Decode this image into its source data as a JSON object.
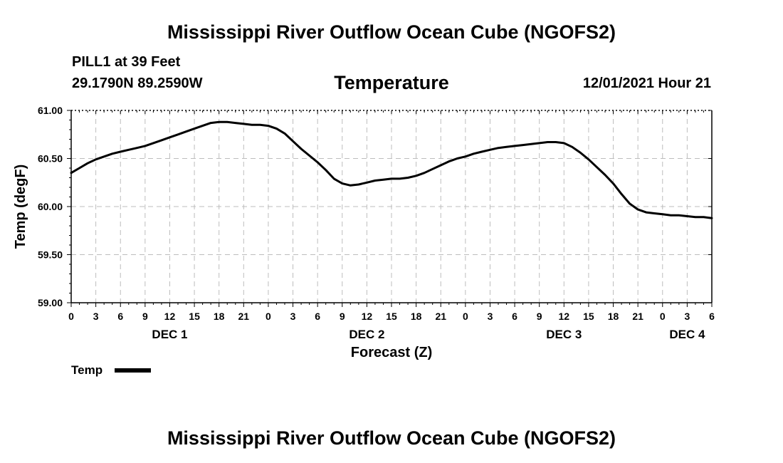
{
  "header": {
    "title": "Mississippi River Outflow Ocean Cube (NGOFS2)",
    "station": "PILL1 at 39 Feet",
    "coords": "29.1790N  89.2590W",
    "datetime": "12/01/2021 Hour 21"
  },
  "footer": {
    "title": "Mississippi River Outflow Ocean Cube (NGOFS2)"
  },
  "chart_data": {
    "type": "line",
    "title": "Temperature",
    "xlabel": "Forecast (Z)",
    "ylabel": "Temp (degF)",
    "ylim": [
      59.0,
      61.0
    ],
    "xlim": [
      0,
      78
    ],
    "grid": true,
    "y_ticks": [
      "59.00",
      "59.50",
      "60.00",
      "60.50",
      "61.00"
    ],
    "x_tick_labels": [
      "0",
      "3",
      "6",
      "9",
      "12",
      "15",
      "18",
      "21",
      "0",
      "3",
      "6",
      "9",
      "12",
      "15",
      "18",
      "21",
      "0",
      "3",
      "6",
      "9",
      "12",
      "15",
      "18",
      "21",
      "0",
      "3",
      "6"
    ],
    "day_labels": [
      {
        "hour": 12,
        "label": "DEC 1"
      },
      {
        "hour": 36,
        "label": "DEC 2"
      },
      {
        "hour": 60,
        "label": "DEC 3"
      },
      {
        "hour": 75,
        "label": "DEC 4"
      }
    ],
    "legend": "bottom-left",
    "series": [
      {
        "name": "Temp",
        "color": "#000000",
        "x": [
          0,
          1,
          2,
          3,
          4,
          5,
          6,
          7,
          8,
          9,
          10,
          11,
          12,
          13,
          14,
          15,
          16,
          17,
          18,
          19,
          20,
          21,
          22,
          23,
          24,
          25,
          26,
          27,
          28,
          29,
          30,
          31,
          32,
          33,
          34,
          35,
          36,
          37,
          38,
          39,
          40,
          41,
          42,
          43,
          44,
          45,
          46,
          47,
          48,
          49,
          50,
          51,
          52,
          53,
          54,
          55,
          56,
          57,
          58,
          59,
          60,
          61,
          62,
          63,
          64,
          65,
          66,
          67,
          68,
          69,
          70,
          71,
          72,
          73,
          74,
          75,
          76,
          77,
          78
        ],
        "y": [
          60.35,
          60.4,
          60.45,
          60.49,
          60.52,
          60.55,
          60.57,
          60.59,
          60.61,
          60.63,
          60.66,
          60.69,
          60.72,
          60.75,
          60.78,
          60.81,
          60.84,
          60.87,
          60.88,
          60.88,
          60.87,
          60.86,
          60.85,
          60.85,
          60.84,
          60.81,
          60.76,
          60.68,
          60.6,
          60.53,
          60.46,
          60.38,
          60.29,
          60.24,
          60.22,
          60.23,
          60.25,
          60.27,
          60.28,
          60.29,
          60.29,
          60.3,
          60.32,
          60.35,
          60.39,
          60.43,
          60.47,
          60.5,
          60.52,
          60.55,
          60.57,
          60.59,
          60.61,
          60.62,
          60.63,
          60.64,
          60.65,
          60.66,
          60.67,
          60.67,
          60.66,
          60.62,
          60.56,
          60.49,
          60.41,
          60.33,
          60.24,
          60.13,
          60.03,
          59.97,
          59.94,
          59.93,
          59.92,
          59.91,
          59.91,
          59.9,
          59.89,
          59.89,
          59.88
        ]
      }
    ]
  }
}
